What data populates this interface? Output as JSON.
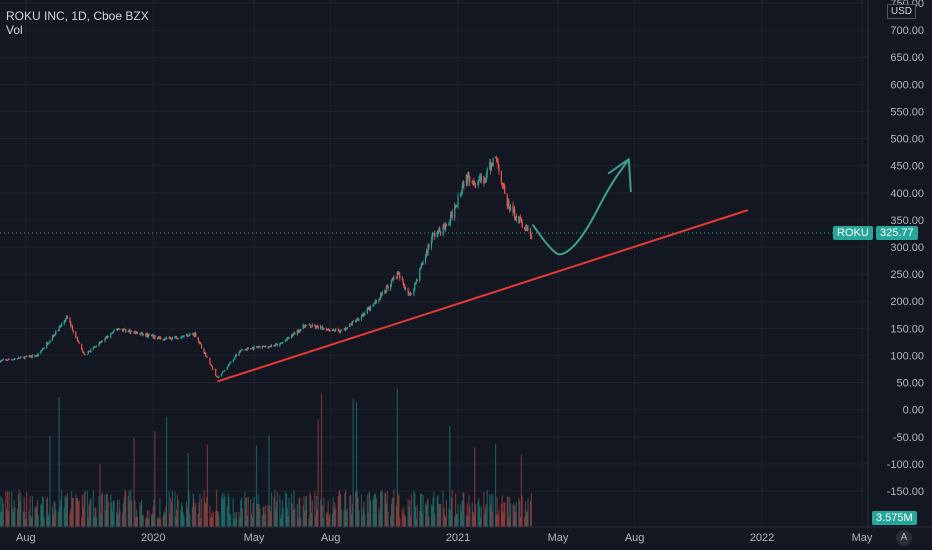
{
  "header": {
    "title": "ROKU INC, 1D, Cboe BZX",
    "indicator": "Vol"
  },
  "price_scale": {
    "currency": "USD"
  },
  "price_label": {
    "symbol": "ROKU",
    "value": "325.77",
    "color": "#26a69a"
  },
  "volume_label": {
    "value": "3.575M",
    "color": "#26a69a"
  },
  "auto_button": {
    "label": "A"
  },
  "colors": {
    "up": "#26a69a",
    "down": "#ef5350",
    "trendline": "#e53935",
    "drawing": "#3ba08e",
    "grid": "#1e222d",
    "background": "#131722"
  },
  "chart_data": {
    "type": "candlestick",
    "title": "ROKU INC, 1D, Cboe BZX",
    "y_ticks": [
      "750.00",
      "700.00",
      "650.00",
      "600.00",
      "550.00",
      "500.00",
      "450.00",
      "400.00",
      "350.00",
      "300.00",
      "250.00",
      "200.00",
      "150.00",
      "100.00",
      "50.00",
      "0.00",
      "-50.00",
      "-100.00",
      "-150.00"
    ],
    "x_ticks": [
      "Aug",
      "2020",
      "May",
      "Aug",
      "2021",
      "May",
      "Aug",
      "2022",
      "May"
    ],
    "ylim": [
      -180,
      760
    ],
    "last_price": 325.77,
    "price_path": [
      {
        "date": "2019-07-01",
        "price": 90
      },
      {
        "date": "2019-08-15",
        "price": 100
      },
      {
        "date": "2019-09-20",
        "price": 170
      },
      {
        "date": "2019-10-10",
        "price": 100
      },
      {
        "date": "2019-11-20",
        "price": 150
      },
      {
        "date": "2019-12-15",
        "price": 140
      },
      {
        "date": "2020-01-15",
        "price": 130
      },
      {
        "date": "2020-02-20",
        "price": 140
      },
      {
        "date": "2020-03-18",
        "price": 58
      },
      {
        "date": "2020-04-15",
        "price": 110
      },
      {
        "date": "2020-06-01",
        "price": 120
      },
      {
        "date": "2020-07-01",
        "price": 155
      },
      {
        "date": "2020-08-15",
        "price": 145
      },
      {
        "date": "2020-09-20",
        "price": 190
      },
      {
        "date": "2020-10-20",
        "price": 250
      },
      {
        "date": "2020-11-05",
        "price": 210
      },
      {
        "date": "2020-12-01",
        "price": 320
      },
      {
        "date": "2020-12-20",
        "price": 340
      },
      {
        "date": "2021-01-10",
        "price": 430
      },
      {
        "date": "2021-02-01",
        "price": 420
      },
      {
        "date": "2021-02-15",
        "price": 470
      },
      {
        "date": "2021-03-01",
        "price": 380
      },
      {
        "date": "2021-03-15",
        "price": 350
      },
      {
        "date": "2021-03-30",
        "price": 320
      }
    ],
    "trendline": {
      "from": {
        "date": "2020-03-18",
        "price": 52
      },
      "to": {
        "date": "2021-12-15",
        "price": 368
      }
    },
    "projection": [
      {
        "date": "2021-04-01",
        "price": 340
      },
      {
        "date": "2021-04-20",
        "price": 300
      },
      {
        "date": "2021-05-05",
        "price": 280
      },
      {
        "date": "2021-06-01",
        "price": 320
      },
      {
        "date": "2021-07-01",
        "price": 410
      },
      {
        "date": "2021-07-25",
        "price": 462
      }
    ]
  }
}
